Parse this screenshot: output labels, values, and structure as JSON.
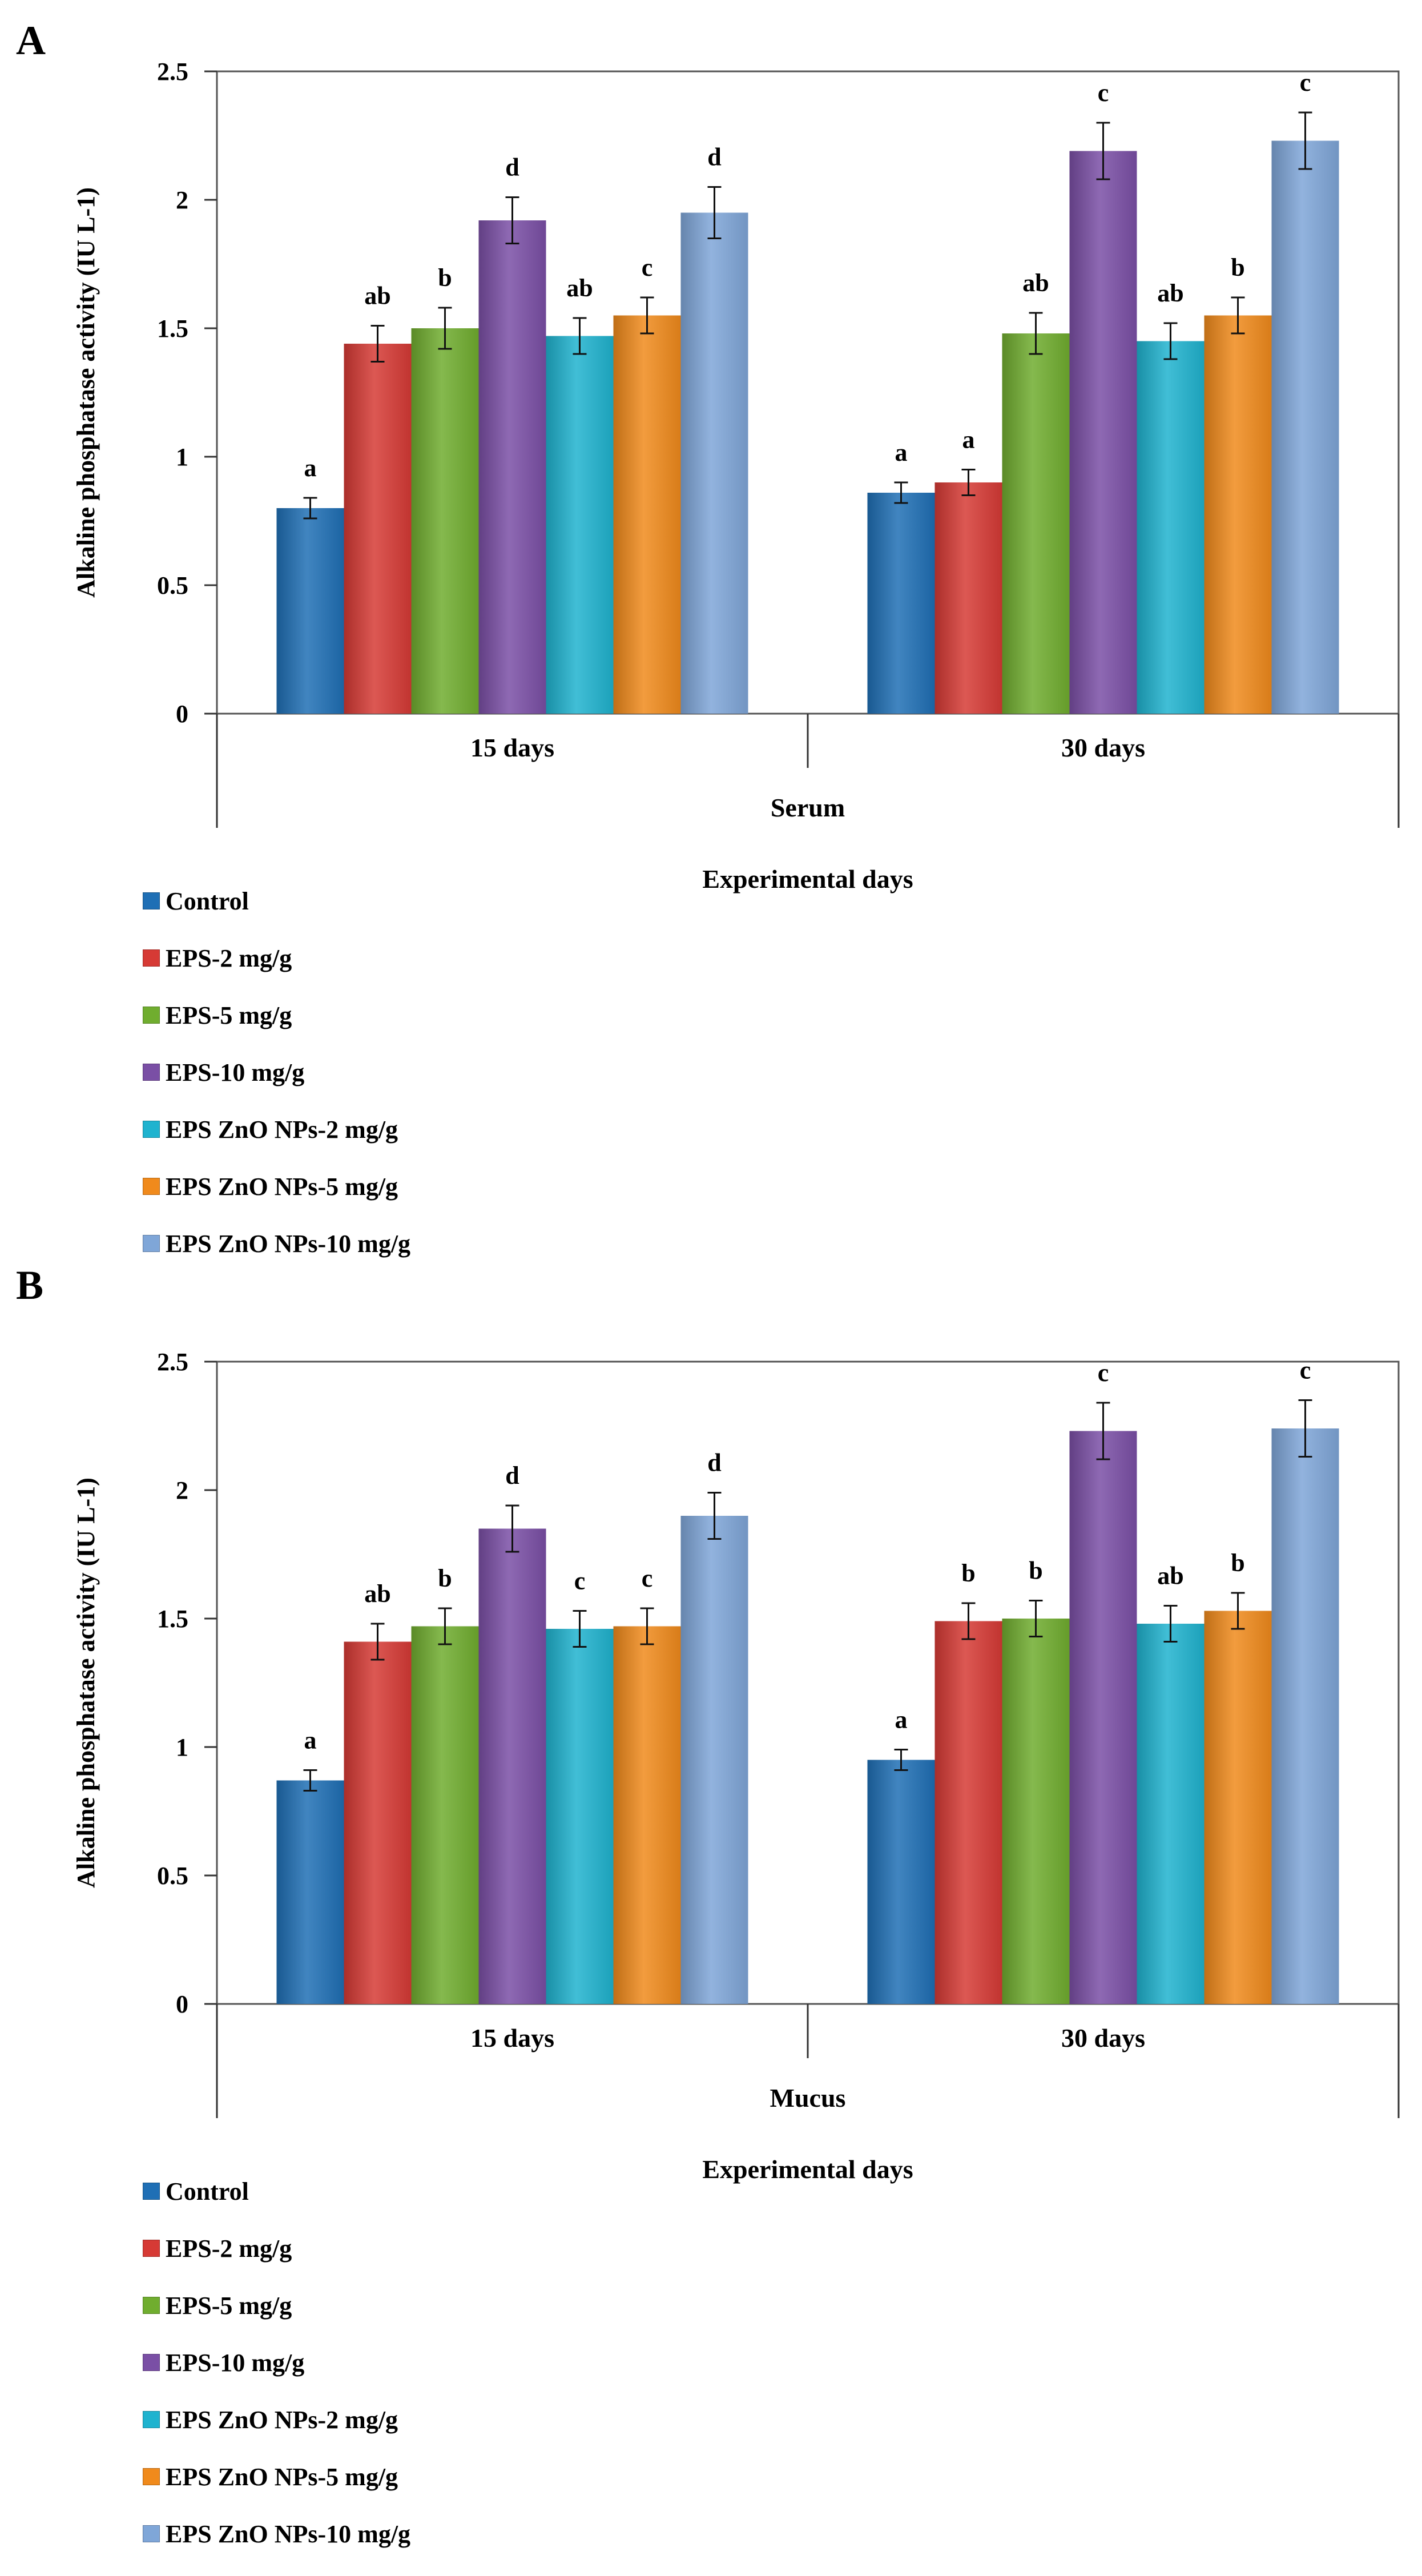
{
  "colors": {
    "Control": "#1f6fb5",
    "EPS-2 mg/g": "#d63a35",
    "EPS-5 mg/g": "#70ad2f",
    "EPS-10 mg/g": "#7a4fa5",
    "EPS ZnO NPs-2 mg/g": "#1fb3cf",
    "EPS ZnO NPs-5 mg/g": "#f08a1c",
    "EPS ZnO NPs-10 mg/g": "#7fa6d8"
  },
  "chart_data": [
    {
      "panel": "A",
      "type": "bar",
      "ylabel": "Alkaline phosphatase activity (IU L-1)",
      "xlabel": "Experimental days",
      "group_label": "Serum",
      "ylim": [
        0,
        2.5
      ],
      "yticks": [
        "0",
        "0.5",
        "1",
        "1.5",
        "2",
        "2.5"
      ],
      "categories": [
        "15 days",
        "30 days"
      ],
      "series": [
        {
          "name": "Control",
          "values": [
            0.8,
            0.86
          ],
          "errors": [
            0.04,
            0.04
          ],
          "letters": [
            "a",
            "a"
          ]
        },
        {
          "name": "EPS-2 mg/g",
          "values": [
            1.44,
            0.9
          ],
          "errors": [
            0.07,
            0.05
          ],
          "letters": [
            "ab",
            "a"
          ]
        },
        {
          "name": "EPS-5 mg/g",
          "values": [
            1.5,
            1.48
          ],
          "errors": [
            0.08,
            0.08
          ],
          "letters": [
            "b",
            "ab"
          ]
        },
        {
          "name": "EPS-10 mg/g",
          "values": [
            1.92,
            2.19
          ],
          "errors": [
            0.09,
            0.11
          ],
          "letters": [
            "d",
            "c"
          ]
        },
        {
          "name": "EPS ZnO NPs-2 mg/g",
          "values": [
            1.47,
            1.45
          ],
          "errors": [
            0.07,
            0.07
          ],
          "letters": [
            "ab",
            "ab"
          ]
        },
        {
          "name": "EPS ZnO NPs-5 mg/g",
          "values": [
            1.55,
            1.55
          ],
          "errors": [
            0.07,
            0.07
          ],
          "letters": [
            "c",
            "b"
          ]
        },
        {
          "name": "EPS ZnO NPs-10 mg/g",
          "values": [
            1.95,
            2.23
          ],
          "errors": [
            0.1,
            0.11
          ],
          "letters": [
            "d",
            "c"
          ]
        }
      ]
    },
    {
      "panel": "B",
      "type": "bar",
      "ylabel": "Alkaline phosphatase activity (IU L-1)",
      "xlabel": "Experimental days",
      "group_label": "Mucus",
      "ylim": [
        0,
        2.5
      ],
      "yticks": [
        "0",
        "0.5",
        "1",
        "1.5",
        "2",
        "2.5"
      ],
      "categories": [
        "15 days",
        "30 days"
      ],
      "series": [
        {
          "name": "Control",
          "values": [
            0.87,
            0.95
          ],
          "errors": [
            0.04,
            0.04
          ],
          "letters": [
            "a",
            "a"
          ]
        },
        {
          "name": "EPS-2 mg/g",
          "values": [
            1.41,
            1.49
          ],
          "errors": [
            0.07,
            0.07
          ],
          "letters": [
            "ab",
            "b"
          ]
        },
        {
          "name": "EPS-5 mg/g",
          "values": [
            1.47,
            1.5
          ],
          "errors": [
            0.07,
            0.07
          ],
          "letters": [
            "b",
            "b"
          ]
        },
        {
          "name": "EPS-10 mg/g",
          "values": [
            1.85,
            2.23
          ],
          "errors": [
            0.09,
            0.11
          ],
          "letters": [
            "d",
            "c"
          ]
        },
        {
          "name": "EPS ZnO NPs-2 mg/g",
          "values": [
            1.46,
            1.48
          ],
          "errors": [
            0.07,
            0.07
          ],
          "letters": [
            "c",
            "ab"
          ]
        },
        {
          "name": "EPS ZnO NPs-5 mg/g",
          "values": [
            1.47,
            1.53
          ],
          "errors": [
            0.07,
            0.07
          ],
          "letters": [
            "c",
            "b"
          ]
        },
        {
          "name": "EPS ZnO NPs-10 mg/g",
          "values": [
            1.9,
            2.24
          ],
          "errors": [
            0.09,
            0.11
          ],
          "letters": [
            "d",
            "c"
          ]
        }
      ]
    }
  ],
  "legend": [
    "Control",
    "EPS-2 mg/g",
    "EPS-5 mg/g",
    "EPS-10 mg/g",
    "EPS ZnO NPs-2 mg/g",
    "EPS ZnO NPs-5 mg/g",
    "EPS ZnO NPs-10 mg/g"
  ]
}
